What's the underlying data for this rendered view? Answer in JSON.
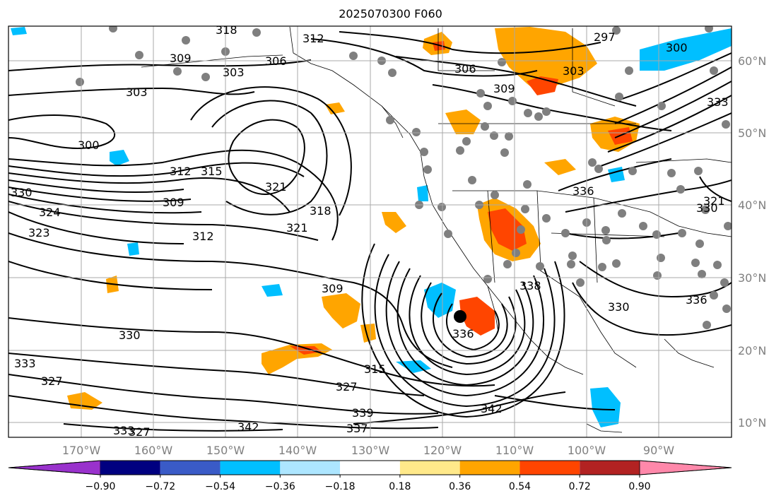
{
  "title": "2025070300 F060",
  "lon_ticks": [
    "170°W",
    "160°W",
    "150°W",
    "140°W",
    "130°W",
    "120°W",
    "110°W",
    "100°W",
    "90°W"
  ],
  "lat_ticks": [
    "60°N",
    "50°N",
    "40°N",
    "30°N",
    "20°N",
    "10°N"
  ],
  "contour_labels": [
    "318",
    "312",
    "297",
    "300",
    "309",
    "306",
    "303",
    "303",
    "306",
    "309",
    "303",
    "333",
    "300",
    "312",
    "315",
    "321",
    "309",
    "324",
    "323",
    "318",
    "321",
    "312",
    "336",
    "330",
    "338",
    "309",
    "330",
    "336",
    "336",
    "330",
    "333",
    "315",
    "327",
    "327",
    "339",
    "342",
    "342",
    "337",
    "333",
    "327",
    "330",
    "321"
  ],
  "colorbar": {
    "ticks": [
      "−0.90",
      "−0.72",
      "−0.54",
      "−0.36",
      "−0.18",
      "0.18",
      "0.36",
      "0.54",
      "0.72",
      "0.90"
    ],
    "colors": [
      "#9932cc",
      "#000080",
      "#3a5bc7",
      "#00bfff",
      "#ade6ff",
      "#ffffff",
      "#ffe98a",
      "#ffa500",
      "#ff4500",
      "#b22222",
      "#ff88aa"
    ]
  },
  "legend_colors": {
    "frame": "#000000",
    "grid": "#a9a9a9",
    "tick_text": "#808080",
    "dot": "#7f7f7f",
    "center_dot": "#000000"
  }
}
